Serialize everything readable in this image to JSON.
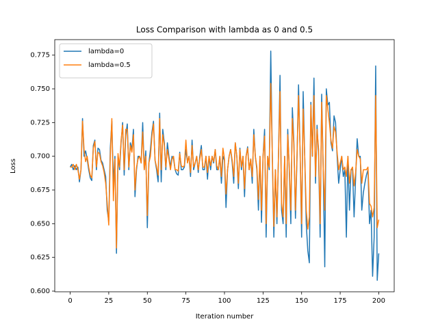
{
  "chart_data": {
    "type": "line",
    "title": "Loss Comparison with lambda as 0 and 0.5",
    "x_label": "Iteration number",
    "y_label": "Loss",
    "legend": "upper left",
    "xlim": [
      -10,
      210
    ],
    "xticks": [
      0,
      25,
      50,
      75,
      100,
      125,
      150,
      175,
      200
    ],
    "ylim": [
      0.5995,
      0.7865
    ],
    "yticks": [
      {
        "value": 0.6,
        "label": "0.600"
      },
      0.625,
      {
        "value": 0.65,
        "label": "0.650"
      },
      0.675,
      {
        "value": 0.7,
        "label": "0.700"
      },
      0.725,
      {
        "value": 0.75,
        "label": "0.750"
      },
      0.775
    ],
    "x": [
      0,
      1,
      2,
      3,
      4,
      5,
      6,
      7,
      8,
      9,
      10,
      11,
      12,
      13,
      14,
      15,
      16,
      17,
      18,
      19,
      20,
      21,
      22,
      23,
      24,
      25,
      26,
      27,
      28,
      29,
      30,
      31,
      32,
      33,
      34,
      35,
      36,
      37,
      38,
      39,
      40,
      41,
      42,
      43,
      44,
      45,
      46,
      47,
      48,
      49,
      50,
      51,
      52,
      53,
      54,
      55,
      56,
      57,
      58,
      59,
      60,
      61,
      62,
      63,
      64,
      65,
      66,
      67,
      68,
      69,
      70,
      71,
      72,
      73,
      74,
      75,
      76,
      77,
      78,
      79,
      80,
      81,
      82,
      83,
      84,
      85,
      86,
      87,
      88,
      89,
      90,
      91,
      92,
      93,
      94,
      95,
      96,
      97,
      98,
      99,
      100,
      101,
      102,
      103,
      104,
      105,
      106,
      107,
      108,
      109,
      110,
      111,
      112,
      113,
      114,
      115,
      116,
      117,
      118,
      119,
      120,
      121,
      122,
      123,
      124,
      125,
      126,
      127,
      128,
      129,
      130,
      131,
      132,
      133,
      134,
      135,
      136,
      137,
      138,
      139,
      140,
      141,
      142,
      143,
      144,
      145,
      146,
      147,
      148,
      149,
      150,
      151,
      152,
      153,
      154,
      155,
      156,
      157,
      158,
      159,
      160,
      161,
      162,
      163,
      164,
      165,
      166,
      167,
      168,
      169,
      170,
      171,
      172,
      173,
      174,
      175,
      176,
      177,
      178,
      179,
      180,
      181,
      182,
      183,
      184,
      185,
      186,
      187,
      188,
      189,
      190,
      191,
      192,
      193,
      194,
      195,
      196,
      197,
      198,
      199,
      200
    ],
    "series": [
      {
        "name": "lambda=0",
        "color": "#1f77b4",
        "values": [
          0.692,
          0.694,
          0.69,
          0.693,
          0.69,
          0.692,
          0.681,
          0.69,
          0.728,
          0.7,
          0.704,
          0.698,
          0.69,
          0.684,
          0.682,
          0.708,
          0.712,
          0.69,
          0.706,
          0.705,
          0.697,
          0.695,
          0.69,
          0.685,
          0.66,
          0.652,
          0.706,
          0.726,
          0.68,
          0.7,
          0.628,
          0.7,
          0.69,
          0.71,
          0.725,
          0.686,
          0.715,
          0.724,
          0.69,
          0.71,
          0.705,
          0.72,
          0.67,
          0.69,
          0.7,
          0.7,
          0.695,
          0.725,
          0.69,
          0.704,
          0.647,
          0.695,
          0.705,
          0.718,
          0.726,
          0.697,
          0.69,
          0.681,
          0.732,
          0.681,
          0.72,
          0.71,
          0.69,
          0.71,
          0.7,
          0.692,
          0.7,
          0.698,
          0.69,
          0.687,
          0.686,
          0.703,
          0.69,
          0.69,
          0.692,
          0.705,
          0.696,
          0.7,
          0.685,
          0.712,
          0.69,
          0.695,
          0.7,
          0.688,
          0.7,
          0.708,
          0.69,
          0.69,
          0.7,
          0.683,
          0.7,
          0.69,
          0.7,
          0.695,
          0.705,
          0.69,
          0.69,
          0.7,
          0.68,
          0.7,
          0.697,
          0.662,
          0.69,
          0.7,
          0.705,
          0.695,
          0.68,
          0.71,
          0.7,
          0.676,
          0.706,
          0.69,
          0.7,
          0.67,
          0.7,
          0.707,
          0.69,
          0.698,
          0.68,
          0.72,
          0.7,
          0.69,
          0.66,
          0.7,
          0.651,
          0.7,
          0.72,
          0.64,
          0.7,
          0.69,
          0.778,
          0.7,
          0.64,
          0.69,
          0.65,
          0.7,
          0.76,
          0.66,
          0.65,
          0.7,
          0.64,
          0.72,
          0.69,
          0.65,
          0.736,
          0.71,
          0.654,
          0.698,
          0.753,
          0.705,
          0.64,
          0.748,
          0.7,
          0.65,
          0.63,
          0.621,
          0.74,
          0.7,
          0.758,
          0.68,
          0.723,
          0.7,
          0.64,
          0.746,
          0.69,
          0.618,
          0.75,
          0.738,
          0.74,
          0.71,
          0.704,
          0.73,
          0.725,
          0.7,
          0.68,
          0.69,
          0.7,
          0.685,
          0.69,
          0.64,
          0.7,
          0.66,
          0.69,
          0.69,
          0.655,
          0.684,
          0.713,
          0.7,
          0.7,
          0.66,
          0.673,
          0.68,
          0.686,
          0.69,
          0.65,
          0.66,
          0.611,
          0.64,
          0.767,
          0.608,
          0.628
        ]
      },
      {
        "name": "lambda=0.5",
        "color": "#ff7f0e",
        "values": [
          0.692,
          0.692,
          0.694,
          0.69,
          0.694,
          0.69,
          0.683,
          0.69,
          0.726,
          0.705,
          0.696,
          0.7,
          0.692,
          0.686,
          0.684,
          0.706,
          0.711,
          0.692,
          0.703,
          0.702,
          0.696,
          0.693,
          0.688,
          0.68,
          0.665,
          0.649,
          0.7,
          0.728,
          0.667,
          0.698,
          0.632,
          0.702,
          0.692,
          0.712,
          0.723,
          0.69,
          0.72,
          0.72,
          0.692,
          0.708,
          0.703,
          0.716,
          0.675,
          0.692,
          0.698,
          0.7,
          0.695,
          0.718,
          0.69,
          0.7,
          0.656,
          0.695,
          0.7,
          0.715,
          0.724,
          0.697,
          0.692,
          0.686,
          0.728,
          0.69,
          0.716,
          0.708,
          0.692,
          0.705,
          0.698,
          0.69,
          0.698,
          0.7,
          0.69,
          0.69,
          0.689,
          0.702,
          0.693,
          0.692,
          0.693,
          0.712,
          0.695,
          0.7,
          0.688,
          0.708,
          0.692,
          0.695,
          0.7,
          0.69,
          0.698,
          0.705,
          0.692,
          0.692,
          0.7,
          0.688,
          0.7,
          0.693,
          0.7,
          0.696,
          0.705,
          0.693,
          0.69,
          0.7,
          0.685,
          0.706,
          0.698,
          0.672,
          0.69,
          0.7,
          0.705,
          0.697,
          0.685,
          0.71,
          0.7,
          0.68,
          0.705,
          0.692,
          0.7,
          0.676,
          0.7,
          0.706,
          0.69,
          0.698,
          0.685,
          0.716,
          0.7,
          0.692,
          0.668,
          0.7,
          0.66,
          0.7,
          0.715,
          0.65,
          0.7,
          0.692,
          0.754,
          0.702,
          0.648,
          0.69,
          0.655,
          0.7,
          0.748,
          0.665,
          0.655,
          0.7,
          0.65,
          0.716,
          0.692,
          0.66,
          0.728,
          0.708,
          0.66,
          0.7,
          0.745,
          0.705,
          0.65,
          0.735,
          0.7,
          0.66,
          0.646,
          0.655,
          0.738,
          0.7,
          0.745,
          0.685,
          0.72,
          0.705,
          0.65,
          0.74,
          0.69,
          0.66,
          0.745,
          0.735,
          0.725,
          0.712,
          0.706,
          0.722,
          0.718,
          0.703,
          0.69,
          0.695,
          0.7,
          0.69,
          0.692,
          0.685,
          0.7,
          0.68,
          0.69,
          0.692,
          0.678,
          0.688,
          0.705,
          0.7,
          0.698,
          0.68,
          0.69,
          0.69,
          0.69,
          0.692,
          0.665,
          0.663,
          0.655,
          0.662,
          0.745,
          0.647,
          0.653
        ]
      }
    ]
  }
}
